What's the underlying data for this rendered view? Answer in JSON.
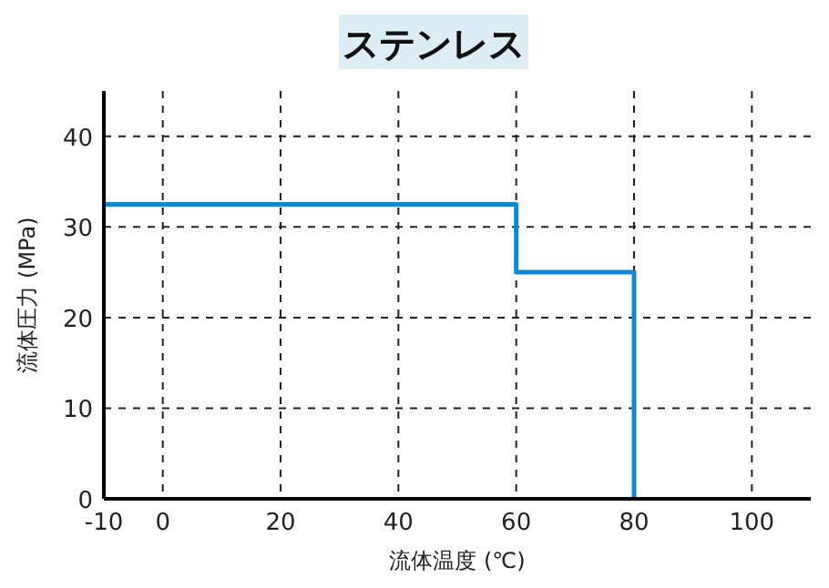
{
  "chart_data": {
    "type": "line",
    "title": "ステンレス",
    "xlabel": "流体温度 (℃)",
    "ylabel": "流体圧力 (MPa)",
    "x": [
      -10,
      60,
      60,
      80,
      80
    ],
    "series": [
      {
        "color": "#1287d0",
        "values": [
          32.5,
          32.5,
          25,
          25,
          0
        ]
      }
    ],
    "xlim": [
      -10,
      110
    ],
    "xticks": [
      -10,
      0,
      20,
      40,
      60,
      80,
      100
    ],
    "ylim": [
      0,
      45
    ],
    "yticks": [
      0,
      10,
      20,
      30,
      40
    ],
    "grid": true,
    "line_style": "solid",
    "marker": "none"
  }
}
